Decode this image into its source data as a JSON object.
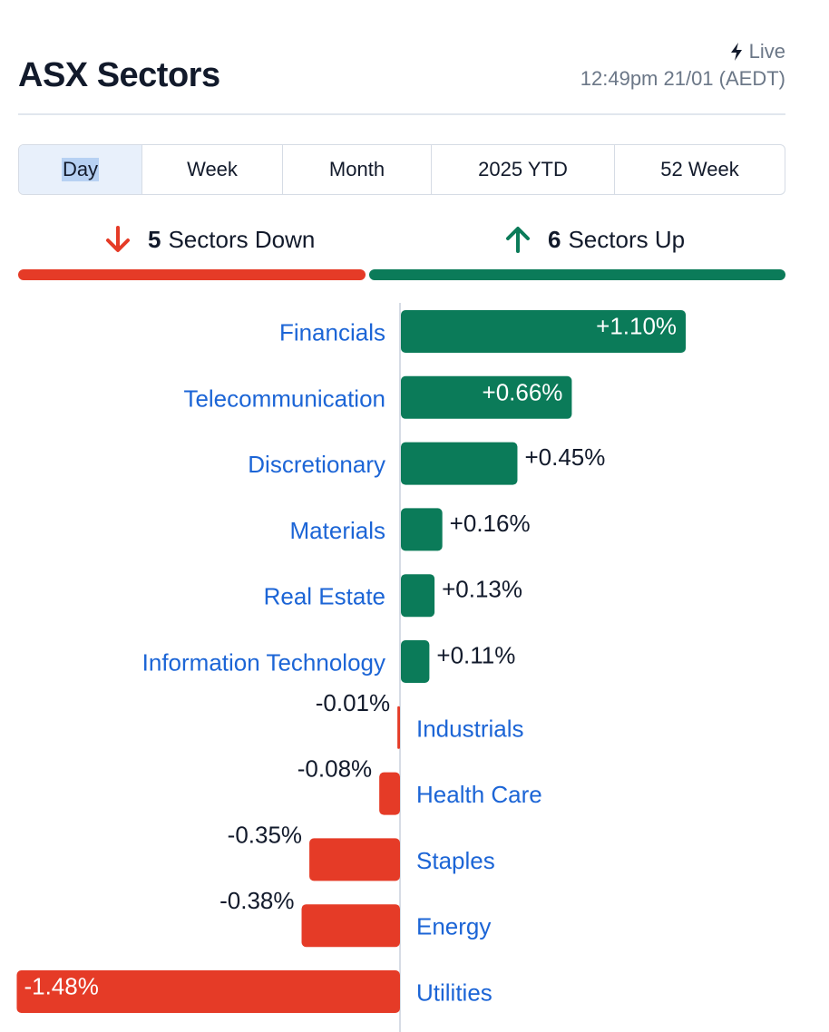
{
  "header": {
    "title": "ASX Sectors",
    "live_label": "Live",
    "timestamp": "12:49pm 21/01 (AEDT)"
  },
  "tabs": [
    {
      "label": "Day",
      "active": true
    },
    {
      "label": "Week",
      "active": false
    },
    {
      "label": "Month",
      "active": false
    },
    {
      "label": "2025 YTD",
      "active": false
    },
    {
      "label": "52 Week",
      "active": false
    }
  ],
  "summary": {
    "down_count": "5",
    "down_label": "Sectors Down",
    "up_count": "6",
    "up_label": "Sectors Up"
  },
  "colors": {
    "up": "#0b7b59",
    "down": "#e53b27",
    "link": "#1c65d6"
  },
  "chart_data": {
    "type": "bar",
    "orientation": "horizontal",
    "categories": [
      "Financials",
      "Telecommunication",
      "Discretionary",
      "Materials",
      "Real Estate",
      "Information Technology",
      "Industrials",
      "Health Care",
      "Staples",
      "Energy",
      "Utilities"
    ],
    "values": [
      1.1,
      0.66,
      0.45,
      0.16,
      0.13,
      0.11,
      -0.01,
      -0.08,
      -0.35,
      -0.38,
      -1.48
    ],
    "value_labels": [
      "+1.10%",
      "+0.66%",
      "+0.45%",
      "+0.16%",
      "+0.13%",
      "+0.11%",
      "-0.01%",
      "-0.08%",
      "-0.35%",
      "-0.38%",
      "-1.48%"
    ],
    "unit": "%"
  }
}
